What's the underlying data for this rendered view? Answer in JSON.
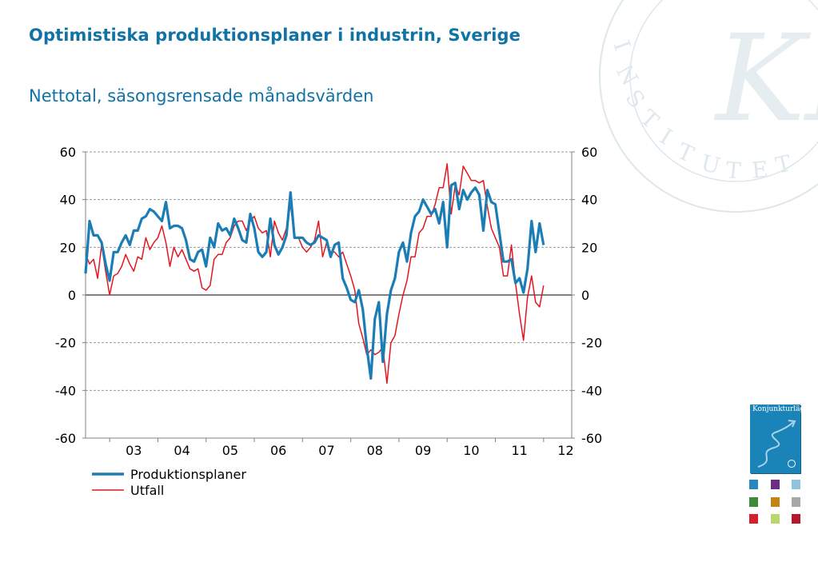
{
  "title": "Optimistiska produktionsplaner i industrin, Sverige",
  "subtitle": "Nettotal, säsongsrensade månadsvärden",
  "legend": [
    "Produktionsplaner",
    "Utfall"
  ],
  "thumbnail": {
    "title": "Konjunkturläget",
    "icon": "konjunkturlaget-cover-icon"
  },
  "colors": {
    "text_blue": "#1173a4",
    "series_blue": "#1a7db5",
    "series_red": "#e3171f"
  },
  "chart_data": {
    "type": "line",
    "title": "Optimistiska produktionsplaner i industrin, Sverige",
    "subtitle": "Nettotal, säsongsrensade månadsvärden",
    "xlabel": "",
    "ylabel": "",
    "x_start": "2002-07",
    "x_end": "2012-08",
    "x_tick_labels": [
      "03",
      "04",
      "05",
      "06",
      "07",
      "08",
      "09",
      "10",
      "11",
      "12"
    ],
    "ylim": [
      -60,
      60
    ],
    "y_ticks": [
      -60,
      -40,
      -20,
      0,
      20,
      40,
      60
    ],
    "dual_y_axis": true,
    "grid": "horizontal dashed",
    "legend_position": "bottom-left",
    "series": [
      {
        "name": "Produktionsplaner",
        "color": "#1a7db5",
        "values": [
          9,
          31,
          25,
          25,
          22,
          13,
          6,
          18,
          18,
          22,
          25,
          21,
          27,
          27,
          32,
          33,
          36,
          35,
          33,
          31,
          39,
          28,
          29,
          29,
          28,
          23,
          15,
          14,
          18,
          19,
          12,
          24,
          20,
          30,
          27,
          28,
          25,
          32,
          28,
          23,
          22,
          34,
          28,
          18,
          16,
          18,
          32,
          21,
          17,
          20,
          25,
          43,
          24,
          24,
          24,
          22,
          21,
          22,
          25,
          24,
          23,
          16,
          21,
          22,
          7,
          3,
          -2,
          -3,
          2,
          -6,
          -22,
          -35,
          -10,
          -3,
          -28,
          -8,
          2,
          7,
          18,
          22,
          14,
          26,
          33,
          35,
          40,
          37,
          34,
          36,
          30,
          39,
          20,
          46,
          47,
          36,
          44,
          40,
          43,
          45,
          42,
          27,
          44,
          39,
          38,
          26,
          14,
          14,
          15,
          5,
          7,
          1,
          11,
          31,
          18,
          30,
          21
        ],
        "points": 115
      },
      {
        "name": "Utfall",
        "color": "#e3171f",
        "values": [
          17,
          13,
          15,
          7,
          21,
          10,
          0,
          8,
          9,
          12,
          17,
          13,
          10,
          16,
          15,
          24,
          19,
          22,
          24,
          29,
          22,
          12,
          20,
          16,
          19,
          15,
          11,
          10,
          11,
          3,
          2,
          4,
          15,
          17,
          17,
          22,
          24,
          29,
          31,
          31,
          27,
          31,
          33,
          28,
          26,
          27,
          16,
          31,
          26,
          23,
          28,
          38,
          24,
          24,
          20,
          18,
          20,
          23,
          31,
          16,
          22,
          18,
          18,
          16,
          18,
          13,
          8,
          2,
          -12,
          -18,
          -25,
          -23,
          -25,
          -24,
          -22,
          -37,
          -20,
          -17,
          -8,
          0,
          6,
          16,
          16,
          26,
          28,
          33,
          33,
          38,
          45,
          45,
          55,
          34,
          46,
          42,
          54,
          51,
          48,
          48,
          47,
          48,
          37,
          28,
          24,
          20,
          8,
          8,
          21,
          5,
          -8,
          -19,
          -1,
          8,
          -3,
          -5,
          4
        ],
        "points": 115
      }
    ]
  }
}
